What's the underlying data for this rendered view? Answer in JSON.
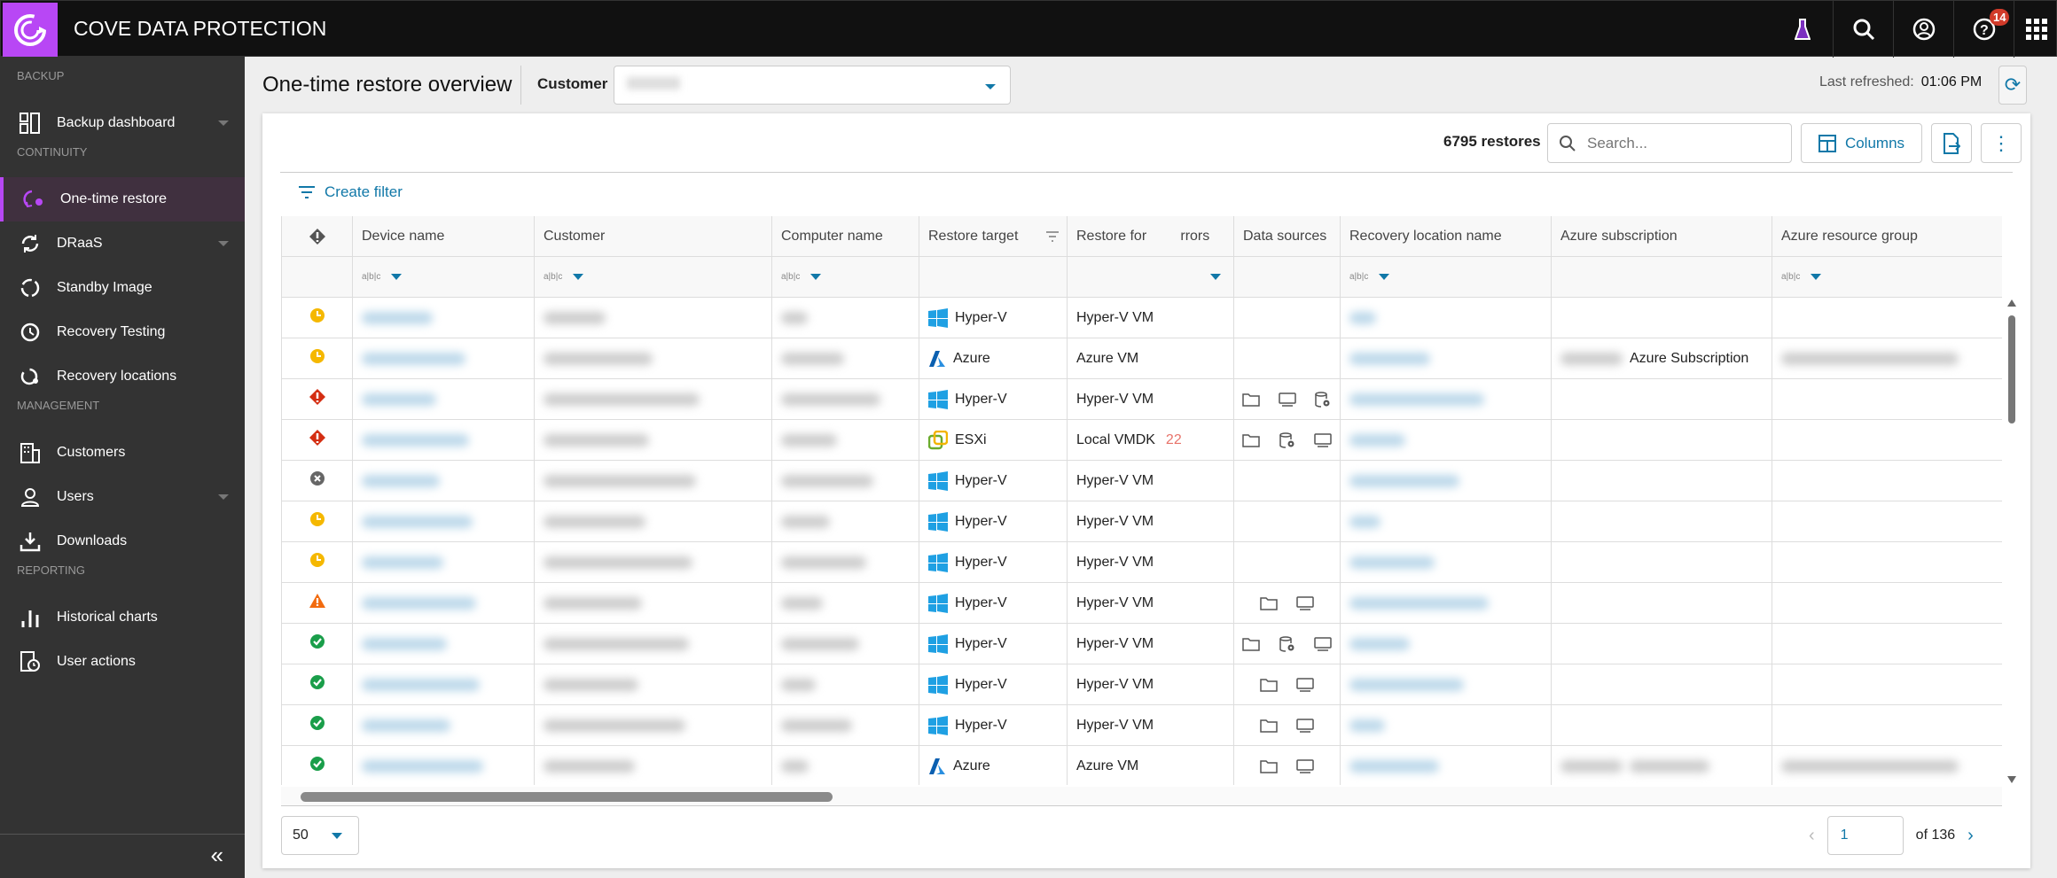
{
  "app": {
    "title": "COVE DATA PROTECTION",
    "notification_count": "14",
    "brand_color": "#b847f5",
    "accent_color": "#1178a8"
  },
  "topbar": {
    "icons": [
      "flask-icon",
      "search-icon",
      "user-icon",
      "help-icon",
      "apps-grid-icon"
    ]
  },
  "sidebar": {
    "sections": [
      {
        "label": "BACKUP",
        "items": [
          {
            "label": "Backup dashboard",
            "icon": "dashboard-icon",
            "caret": true
          }
        ]
      },
      {
        "label": "CONTINUITY",
        "items": [
          {
            "label": "One-time restore",
            "icon": "restore-icon",
            "active": true
          },
          {
            "label": "DRaaS",
            "icon": "sync-icon",
            "caret": true
          },
          {
            "label": "Standby Image",
            "icon": "standby-icon"
          },
          {
            "label": "Recovery Testing",
            "icon": "history-icon"
          },
          {
            "label": "Recovery locations",
            "icon": "location-icon"
          }
        ]
      },
      {
        "label": "MANAGEMENT",
        "items": [
          {
            "label": "Customers",
            "icon": "building-icon"
          },
          {
            "label": "Users",
            "icon": "users-icon",
            "caret": true
          },
          {
            "label": "Downloads",
            "icon": "download-icon"
          }
        ]
      },
      {
        "label": "REPORTING",
        "items": [
          {
            "label": "Historical charts",
            "icon": "chart-icon"
          },
          {
            "label": "User actions",
            "icon": "user-actions-icon"
          }
        ]
      }
    ],
    "collapse": "«"
  },
  "header": {
    "title": "One-time restore overview",
    "customer_label": "Customer",
    "last_refreshed_label": "Last refreshed:",
    "last_refreshed": "01:06 PM"
  },
  "toolbar": {
    "count": "6795 restores",
    "search_placeholder": "Search...",
    "columns_label": "Columns",
    "create_filter": "Create filter"
  },
  "table": {
    "columns": [
      "",
      "Device name",
      "Customer",
      "Computer name",
      "Restore target",
      "Restore for",
      "rrors",
      "Data sources",
      "Recovery location name",
      "Azure subscription",
      "Azure resource group"
    ],
    "rows": [
      {
        "status": "in-progress",
        "target": "Hyper-V",
        "format": "Hyper-V VM",
        "errors": "",
        "ds": [],
        "sub": "",
        "rg": false
      },
      {
        "status": "in-progress",
        "target": "Azure",
        "format": "Azure VM",
        "errors": "",
        "ds": [],
        "sub": "Azure Subscription",
        "rg": true
      },
      {
        "status": "failed",
        "target": "Hyper-V",
        "format": "Hyper-V VM",
        "errors": "",
        "ds": [
          "folder",
          "monitor",
          "db"
        ],
        "sub": "",
        "rg": false
      },
      {
        "status": "failed",
        "target": "ESXi",
        "format": "Local VMDK",
        "errors": "22",
        "ds": [
          "folder",
          "db",
          "monitor"
        ],
        "sub": "",
        "rg": false
      },
      {
        "status": "cancelled",
        "target": "Hyper-V",
        "format": "Hyper-V VM",
        "errors": "",
        "ds": [],
        "sub": "",
        "rg": false
      },
      {
        "status": "in-progress",
        "target": "Hyper-V",
        "format": "Hyper-V VM",
        "errors": "",
        "ds": [],
        "sub": "",
        "rg": false
      },
      {
        "status": "in-progress",
        "target": "Hyper-V",
        "format": "Hyper-V VM",
        "errors": "",
        "ds": [],
        "sub": "",
        "rg": false
      },
      {
        "status": "warning",
        "target": "Hyper-V",
        "format": "Hyper-V VM",
        "errors": "",
        "ds": [
          "folder",
          "monitor"
        ],
        "sub": "",
        "rg": false
      },
      {
        "status": "success",
        "target": "Hyper-V",
        "format": "Hyper-V VM",
        "errors": "",
        "ds": [
          "folder",
          "db",
          "monitor"
        ],
        "sub": "",
        "rg": false
      },
      {
        "status": "success",
        "target": "Hyper-V",
        "format": "Hyper-V VM",
        "errors": "",
        "ds": [
          "folder",
          "monitor"
        ],
        "sub": "",
        "rg": false
      },
      {
        "status": "success",
        "target": "Hyper-V",
        "format": "Hyper-V VM",
        "errors": "",
        "ds": [
          "folder",
          "monitor"
        ],
        "sub": "",
        "rg": false
      },
      {
        "status": "success",
        "target": "Azure",
        "format": "Azure VM",
        "errors": "",
        "ds": [
          "folder",
          "monitor"
        ],
        "sub": "",
        "rg": true
      }
    ],
    "status_colors": {
      "in-progress": "#f5b800",
      "failed": "#d42e12",
      "cancelled": "#666666",
      "warning": "#f26b0f",
      "success": "#1a9e4a"
    }
  },
  "pagination": {
    "page_size": "50",
    "page": "1",
    "of_label": "of 136"
  }
}
